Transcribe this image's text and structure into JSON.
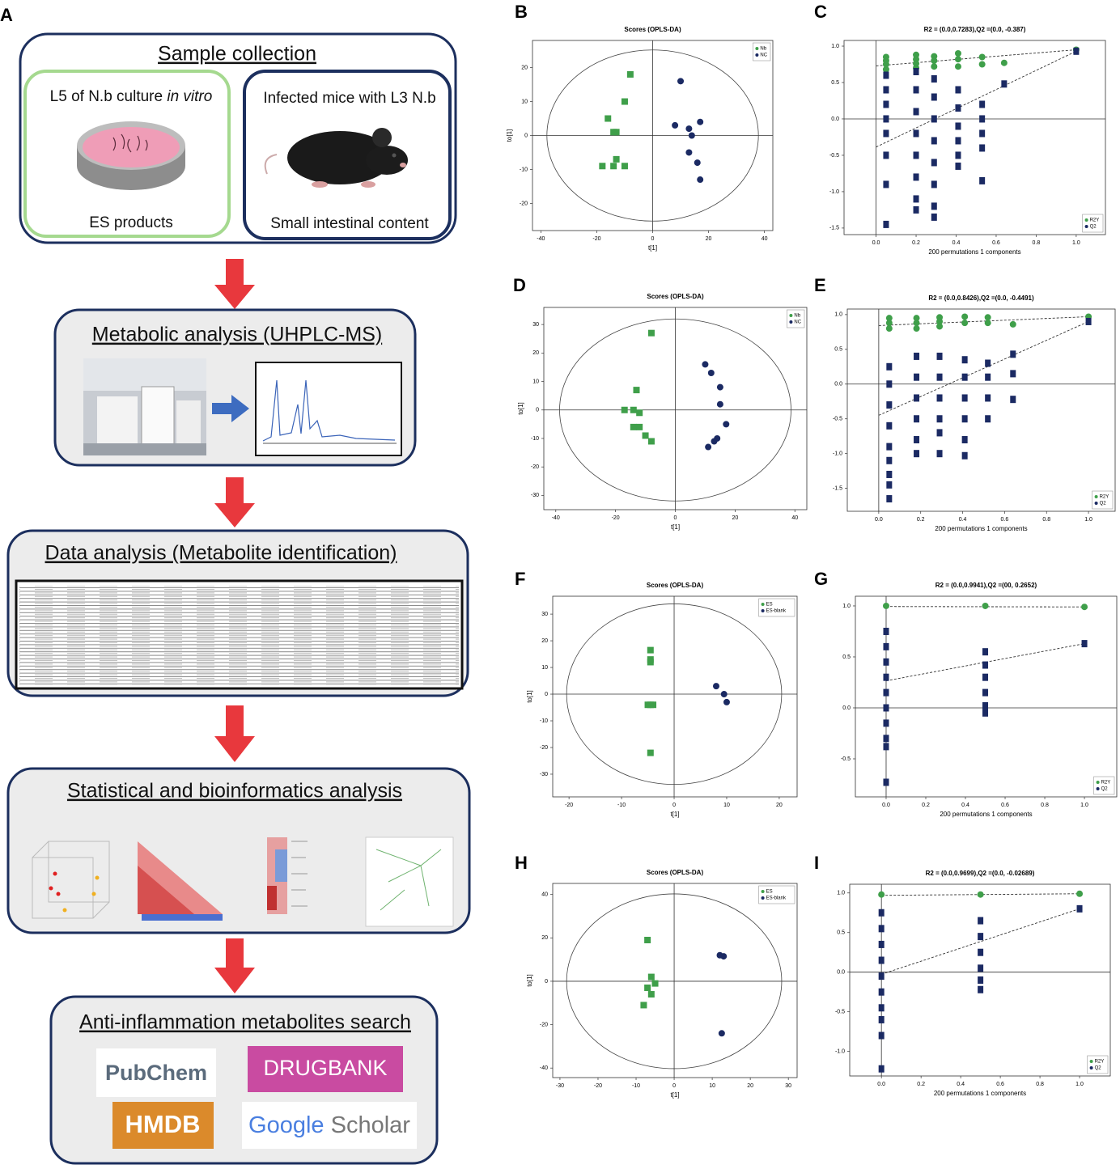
{
  "panel_labels": [
    "A",
    "B",
    "C",
    "D",
    "E",
    "F",
    "G",
    "H",
    "I"
  ],
  "flowchart": {
    "sample_collection": {
      "title": "Sample collection",
      "left": {
        "text": "L5 of N.b culture ",
        "italic": "in vitro",
        "caption": "ES products"
      },
      "right": {
        "text": "Infected mice with L3 N.b",
        "caption": "Small intestinal content"
      }
    },
    "metabolic_analysis": {
      "title": "Metabolic analysis (UHPLC-MS)"
    },
    "data_analysis": {
      "title": "Data analysis (Metabolite identification)"
    },
    "statistical_analysis": {
      "title": "Statistical and bioinformatics analysis"
    },
    "search": {
      "title": "Anti-inflammation metabolites search",
      "logos": {
        "pubchem": "PubChem",
        "drugbank": "DRUGBANK",
        "hmdb": "HMDB",
        "google": "Google",
        "scholar": "Scholar"
      }
    }
  },
  "chart_data": [
    {
      "type": "scatter",
      "title": "Scores (OPLS-DA)",
      "xlabel": "t[1]",
      "ylabel": "to[1]",
      "xlim": [
        -43,
        43
      ],
      "ylim": [
        -28,
        28
      ],
      "xticks": [
        -40,
        -20,
        0,
        20,
        40
      ],
      "yticks": [
        -20,
        -10,
        0,
        10,
        20
      ],
      "legend": "upper right",
      "series": [
        {
          "name": "Nb",
          "color": "#3f9f4a",
          "marker": "square",
          "x": [
            -8,
            -10,
            -16,
            -14,
            -13,
            -13,
            -18,
            -14,
            -10
          ],
          "y": [
            18,
            10,
            5,
            1,
            1,
            -7,
            -9,
            -9,
            -9
          ]
        },
        {
          "name": "NC",
          "color": "#1b2a63",
          "marker": "circle",
          "x": [
            10,
            8,
            13,
            14,
            17,
            13,
            16,
            17
          ],
          "y": [
            16,
            3,
            2,
            0,
            4,
            -5,
            -8,
            -13
          ]
        }
      ]
    },
    {
      "type": "permutation",
      "title": "R2 = (0.0,0.7283),Q2 =(0.0, -0.387)",
      "xlabel": "200 permutations 1 components",
      "xlim": [
        -0.16,
        1.146
      ],
      "ylim": [
        -1.59,
        1.078
      ],
      "xticks": [
        {
          "value": 0,
          "label": "0.0"
        },
        0.2,
        0.4,
        0.6,
        0.8,
        {
          "value": 1,
          "label": "1.0"
        }
      ],
      "yticks": [
        -1.5,
        {
          "value": -1,
          "label": "-1.0"
        },
        -0.5,
        {
          "value": 0,
          "label": "0.0"
        },
        0.5,
        {
          "value": 1,
          "label": "1.0"
        }
      ],
      "legend": "lower right",
      "series": [
        {
          "name": "R2Y",
          "color": "#3f9f4a",
          "marker": "circle",
          "x": [
            0.05,
            0.05,
            0.05,
            0.05,
            0.2,
            0.2,
            0.2,
            0.2,
            0.29,
            0.29,
            0.29,
            0.41,
            0.41,
            0.41,
            0.53,
            0.53,
            0.64,
            1.0
          ],
          "y": [
            0.85,
            0.8,
            0.75,
            0.68,
            0.88,
            0.82,
            0.76,
            0.7,
            0.86,
            0.8,
            0.72,
            0.9,
            0.82,
            0.72,
            0.85,
            0.75,
            0.77,
            0.95
          ]
        },
        {
          "name": "Q2",
          "color": "#1b2a63",
          "marker": "square",
          "x": [
            0.05,
            0.05,
            0.05,
            0.05,
            0.05,
            0.05,
            0.05,
            0.05,
            0.2,
            0.2,
            0.2,
            0.2,
            0.2,
            0.2,
            0.2,
            0.2,
            0.29,
            0.29,
            0.29,
            0.29,
            0.29,
            0.29,
            0.29,
            0.29,
            0.41,
            0.41,
            0.41,
            0.41,
            0.41,
            0.41,
            0.53,
            0.53,
            0.53,
            0.53,
            0.53,
            0.64,
            1.0
          ],
          "y": [
            0.6,
            0.4,
            0.2,
            0,
            -0.2,
            -0.5,
            -0.9,
            -1.45,
            0.65,
            0.4,
            0.1,
            -0.2,
            -0.5,
            -0.8,
            -1.1,
            -1.25,
            0.55,
            0.3,
            0,
            -0.3,
            -0.6,
            -0.9,
            -1.2,
            -1.35,
            0.4,
            0.15,
            -0.1,
            -0.3,
            -0.5,
            -0.65,
            0.2,
            0,
            -0.2,
            -0.4,
            -0.85,
            0.48,
            0.93
          ]
        }
      ],
      "regression": [
        {
          "x": [
            0,
            1
          ],
          "y": [
            0.7283,
            0.95
          ]
        },
        {
          "x": [
            0,
            1
          ],
          "y": [
            -0.387,
            0.93
          ]
        }
      ]
    },
    {
      "type": "scatter",
      "title": "Scores (OPLS-DA)",
      "xlabel": "t[1]",
      "ylabel": "to[1]",
      "xlim": [
        -44,
        44
      ],
      "ylim": [
        -35,
        36
      ],
      "xticks": [
        -40,
        -20,
        0,
        20,
        40
      ],
      "yticks": [
        -30,
        -20,
        -10,
        0,
        10,
        20,
        30
      ],
      "legend": "upper right",
      "series": [
        {
          "name": "Nb",
          "color": "#3f9f4a",
          "marker": "square",
          "x": [
            -8,
            -13,
            -17,
            -14,
            -12,
            -12,
            -14,
            -10,
            -8
          ],
          "y": [
            27,
            7,
            0,
            0,
            -1,
            -6,
            -6,
            -9,
            -11
          ]
        },
        {
          "name": "NC",
          "color": "#1b2a63",
          "marker": "circle",
          "x": [
            10,
            12,
            15,
            15,
            17,
            14,
            13,
            11
          ],
          "y": [
            16,
            13,
            8,
            2,
            -5,
            -10,
            -11,
            -13
          ]
        }
      ]
    },
    {
      "type": "permutation",
      "title": "R2 = (0.0,0.8426),Q2 =(0.0, -0.4491)",
      "xlabel": "200 permutations 1 components",
      "xlim": [
        -0.15,
        1.127
      ],
      "ylim": [
        -1.83,
        1.08
      ],
      "xticks": [
        {
          "value": 0,
          "label": "0.0"
        },
        0.2,
        0.4,
        0.6,
        0.8,
        {
          "value": 1,
          "label": "1.0"
        }
      ],
      "yticks": [
        -1.5,
        {
          "value": -1,
          "label": "-1.0"
        },
        -0.5,
        {
          "value": 0,
          "label": "0.0"
        },
        0.5,
        {
          "value": 1,
          "label": "1.0"
        }
      ],
      "legend": "lower right",
      "series": [
        {
          "name": "R2Y",
          "color": "#3f9f4a",
          "marker": "circle",
          "x": [
            0.05,
            0.05,
            0.05,
            0.18,
            0.18,
            0.18,
            0.29,
            0.29,
            0.29,
            0.41,
            0.41,
            0.52,
            0.52,
            0.64,
            1.0
          ],
          "y": [
            0.95,
            0.88,
            0.8,
            0.95,
            0.88,
            0.8,
            0.96,
            0.9,
            0.83,
            0.97,
            0.88,
            0.96,
            0.88,
            0.86,
            0.97
          ]
        },
        {
          "name": "Q2",
          "color": "#1b2a63",
          "marker": "square",
          "x": [
            0.05,
            0.05,
            0.05,
            0.05,
            0.05,
            0.05,
            0.05,
            0.05,
            0.05,
            0.18,
            0.18,
            0.18,
            0.18,
            0.18,
            0.18,
            0.29,
            0.29,
            0.29,
            0.29,
            0.29,
            0.29,
            0.41,
            0.41,
            0.41,
            0.41,
            0.41,
            0.41,
            0.52,
            0.52,
            0.52,
            0.52,
            0.64,
            0.64,
            0.64,
            1.0
          ],
          "y": [
            0.25,
            0,
            -0.3,
            -0.6,
            -0.9,
            -1.1,
            -1.3,
            -1.45,
            -1.65,
            0.4,
            0.1,
            -0.2,
            -0.5,
            -0.8,
            -1.0,
            0.4,
            0.1,
            -0.2,
            -0.5,
            -0.7,
            -1.0,
            0.35,
            0.1,
            -0.2,
            -0.5,
            -0.8,
            -1.03,
            0.3,
            0.1,
            -0.2,
            -0.5,
            0.43,
            0.15,
            -0.22,
            0.9
          ]
        }
      ],
      "regression": [
        {
          "x": [
            0,
            1
          ],
          "y": [
            0.8426,
            0.97
          ]
        },
        {
          "x": [
            0,
            1
          ],
          "y": [
            -0.4491,
            0.9
          ]
        }
      ]
    },
    {
      "type": "scatter",
      "title": "Scores (OPLS-DA)",
      "xlabel": "t[1]",
      "ylabel": "to[1]",
      "xlim": [
        -23.1,
        23.4
      ],
      "ylim": [
        -38.5,
        36.7
      ],
      "xticks": [
        -20,
        -10,
        0,
        10,
        20
      ],
      "yticks": [
        -30,
        -20,
        -10,
        0,
        10,
        20,
        30
      ],
      "legend": "upper right",
      "series": [
        {
          "name": "ES",
          "color": "#3f9f4a",
          "marker": "square",
          "x": [
            -4.5,
            -4.5,
            -4.5,
            -4.5,
            -4,
            -5,
            -4.5
          ],
          "y": [
            16.5,
            13,
            12,
            -4,
            -4,
            -4,
            -22
          ]
        },
        {
          "name": "ES-blank",
          "color": "#1b2a63",
          "marker": "circle",
          "x": [
            8,
            9.5,
            10
          ],
          "y": [
            3,
            0,
            -3
          ]
        }
      ]
    },
    {
      "type": "permutation",
      "title": "R2 = (0.0,0.9941),Q2 =(00, 0.2652)",
      "xlabel": "200 permutations 1 components",
      "xlim": [
        -0.155,
        1.163
      ],
      "ylim": [
        -0.873,
        1.095
      ],
      "xticks": [
        {
          "value": 0,
          "label": "0.0"
        },
        0.2,
        0.4,
        0.6,
        0.8,
        {
          "value": 1,
          "label": "1.0"
        }
      ],
      "yticks": [
        -0.5,
        {
          "value": 0,
          "label": "0.0"
        },
        0.5,
        {
          "value": 1,
          "label": "1.0"
        }
      ],
      "legend": "lower right",
      "series": [
        {
          "name": "R2Y",
          "color": "#3f9f4a",
          "marker": "circle",
          "x": [
            0,
            0.5,
            1.0
          ],
          "y": [
            1.0,
            1.0,
            0.99
          ]
        },
        {
          "name": "Q2",
          "color": "#1b2a63",
          "marker": "square",
          "x": [
            0,
            0,
            0,
            0,
            0,
            0,
            0,
            0,
            0,
            0,
            0.5,
            0.5,
            0.5,
            0.5,
            0.5,
            0.5,
            1.0
          ],
          "y": [
            0.75,
            0.6,
            0.45,
            0.3,
            0.15,
            0,
            -0.15,
            -0.3,
            -0.38,
            -0.73,
            0.55,
            0.42,
            0.3,
            0.15,
            0.02,
            -0.05,
            0.63
          ]
        }
      ],
      "regression": [
        {
          "x": [
            0,
            1
          ],
          "y": [
            0.9941,
            0.99
          ]
        },
        {
          "x": [
            0,
            1
          ],
          "y": [
            0.2652,
            0.63
          ]
        }
      ]
    },
    {
      "type": "scatter",
      "title": "Scores (OPLS-DA)",
      "xlabel": "t[1]",
      "ylabel": "to[1]",
      "xlim": [
        -31.9,
        32.3
      ],
      "ylim": [
        -44.4,
        45.1
      ],
      "xticks": [
        -30,
        -20,
        -10,
        0,
        10,
        20,
        30
      ],
      "yticks": [
        -40,
        -20,
        0,
        20,
        40
      ],
      "legend": "upper right",
      "series": [
        {
          "name": "ES",
          "color": "#3f9f4a",
          "marker": "square",
          "x": [
            -7,
            -6,
            -5,
            -7,
            -6,
            -8
          ],
          "y": [
            19,
            2,
            -1,
            -3,
            -6,
            -11
          ]
        },
        {
          "name": "ES-blank",
          "color": "#1b2a63",
          "marker": "circle",
          "x": [
            12,
            13,
            12.5
          ],
          "y": [
            12,
            11.5,
            -24
          ]
        }
      ]
    },
    {
      "type": "permutation",
      "title": "R2 = (0.0,0.9699),Q2 =(0.0, -0.02689)",
      "xlabel": "200 permutations 1 components",
      "xlim": [
        -0.16,
        1.155
      ],
      "ylim": [
        -1.31,
        1.11
      ],
      "xticks": [
        {
          "value": 0,
          "label": "0.0"
        },
        0.2,
        0.4,
        0.6,
        0.8,
        {
          "value": 1,
          "label": "1.0"
        }
      ],
      "yticks": [
        {
          "value": -1,
          "label": "-1.0"
        },
        -0.5,
        {
          "value": 0,
          "label": "0.0"
        },
        0.5,
        {
          "value": 1,
          "label": "1.0"
        }
      ],
      "legend": "lower right",
      "series": [
        {
          "name": "R2Y",
          "color": "#3f9f4a",
          "marker": "circle",
          "x": [
            0,
            0.5,
            1.0
          ],
          "y": [
            0.98,
            0.98,
            0.99
          ]
        },
        {
          "name": "Q2",
          "color": "#1b2a63",
          "marker": "square",
          "x": [
            0,
            0,
            0,
            0,
            0,
            0,
            0,
            0,
            0,
            0,
            0.5,
            0.5,
            0.5,
            0.5,
            0.5,
            0.5,
            1.0
          ],
          "y": [
            0.75,
            0.55,
            0.35,
            0.15,
            -0.05,
            -0.25,
            -0.45,
            -0.6,
            -0.8,
            -1.22,
            0.65,
            0.45,
            0.25,
            0.05,
            -0.1,
            -0.22,
            0.8
          ]
        }
      ],
      "regression": [
        {
          "x": [
            0,
            1
          ],
          "y": [
            0.9699,
            0.99
          ]
        },
        {
          "x": [
            0,
            1
          ],
          "y": [
            -0.02689,
            0.8
          ]
        }
      ]
    }
  ]
}
